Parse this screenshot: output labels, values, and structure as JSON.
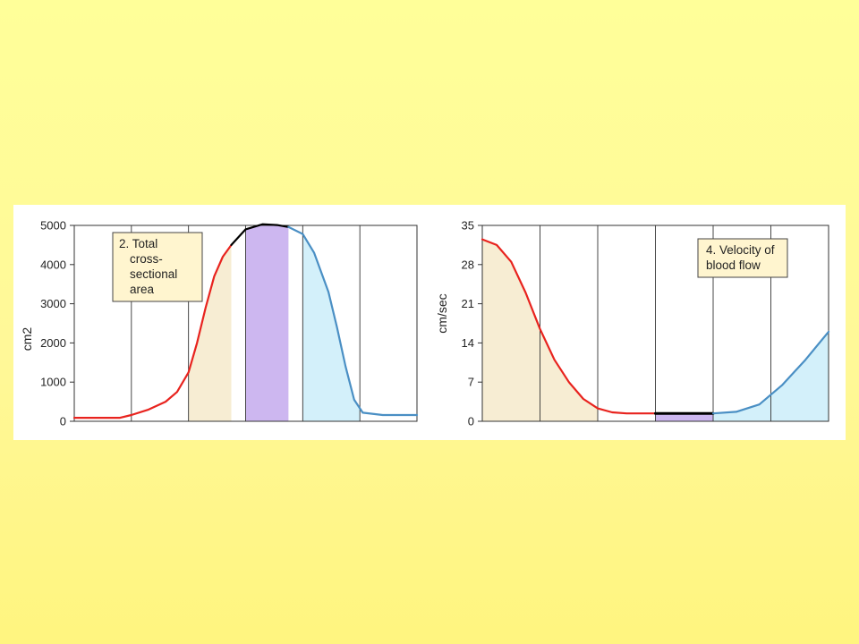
{
  "colors": {
    "background": "#ffff99",
    "arteries": "#e8231e",
    "capillaries": "#000000",
    "veins": "#4a8fc4",
    "arteries_fill": "#f7edd3",
    "capillaries_fill": "#cdb7f0",
    "veins_fill": "#d3f0fa",
    "note_box": "#fff5cf"
  },
  "chart_data": [
    {
      "type": "area",
      "panel": "total-cross-sectional-area",
      "annotation": [
        "2. Total",
        "cross-",
        "sectional",
        "area"
      ],
      "ylabel": "cm2",
      "xlabel": "",
      "ylim": [
        0,
        5000
      ],
      "yticks": [
        "0",
        "1000",
        "2000",
        "3000",
        "4000",
        "5000"
      ],
      "grid": true,
      "segments": 6,
      "series": [
        {
          "key": "arteries",
          "fill_segments": [
            2,
            3
          ],
          "x": [
            0,
            0.2,
            0.5,
            0.8,
            1.0,
            1.3,
            1.6,
            1.8,
            2.0,
            2.15,
            2.3,
            2.45,
            2.6,
            2.75
          ],
          "y": [
            90,
            90,
            90,
            90,
            160,
            300,
            500,
            750,
            1250,
            2000,
            2900,
            3700,
            4200,
            4500
          ]
        },
        {
          "key": "capillaries",
          "fill_segments": [
            3,
            4
          ],
          "x": [
            2.75,
            3.0,
            3.3,
            3.55,
            3.75
          ],
          "y": [
            4500,
            4900,
            5030,
            5010,
            4960
          ]
        },
        {
          "key": "veins",
          "fill_segments": [
            4,
            5
          ],
          "x": [
            3.75,
            4.0,
            4.2,
            4.45,
            4.6,
            4.75,
            4.9,
            5.05,
            5.4,
            6.0
          ],
          "y": [
            4960,
            4780,
            4300,
            3300,
            2400,
            1400,
            550,
            220,
            160,
            160
          ]
        }
      ]
    },
    {
      "type": "area",
      "panel": "velocity-of-blood-flow",
      "annotation": [
        "4. Velocity of",
        "blood flow"
      ],
      "ylabel": "cm/sec",
      "xlabel": "",
      "ylim": [
        0,
        35
      ],
      "yticks": [
        "0",
        "7",
        "14",
        "21",
        "28",
        "35"
      ],
      "grid": true,
      "segments": 6,
      "series": [
        {
          "key": "arteries",
          "fill_segments": [
            0,
            2
          ],
          "x": [
            0,
            0.25,
            0.5,
            0.75,
            1.0,
            1.25,
            1.5,
            1.75,
            2.0,
            2.25,
            2.5,
            2.75,
            3.0
          ],
          "y": [
            32.5,
            31.5,
            28.5,
            23,
            16.5,
            11,
            7,
            4,
            2.3,
            1.6,
            1.4,
            1.4,
            1.4
          ]
        },
        {
          "key": "capillaries",
          "fill_segments": [
            3,
            4
          ],
          "x": [
            3.0,
            3.5,
            4.0
          ],
          "y": [
            1.4,
            1.4,
            1.4
          ]
        },
        {
          "key": "veins",
          "fill_segments": [
            4,
            6
          ],
          "x": [
            4.0,
            4.4,
            4.8,
            5.2,
            5.6,
            6.0
          ],
          "y": [
            1.4,
            1.7,
            3.0,
            6.5,
            11.0,
            16.0
          ]
        }
      ]
    }
  ]
}
